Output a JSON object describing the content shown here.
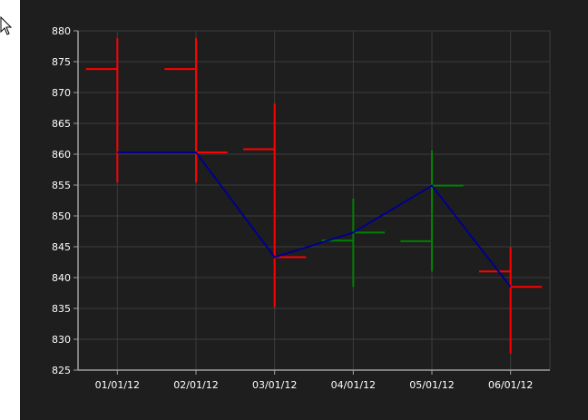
{
  "chart_data": {
    "type": "ohlc",
    "categories": [
      "01/01/12",
      "02/01/12",
      "03/01/12",
      "04/01/12",
      "05/01/12",
      "06/01/12"
    ],
    "ohlc": [
      {
        "open": 873.8,
        "high": 878.8,
        "low": 855.4,
        "close": 860.3
      },
      {
        "open": 873.8,
        "high": 878.8,
        "low": 855.4,
        "close": 860.3
      },
      {
        "open": 860.8,
        "high": 868.2,
        "low": 835.2,
        "close": 843.3
      },
      {
        "open": 846.0,
        "high": 852.8,
        "low": 838.5,
        "close": 847.3
      },
      {
        "open": 845.9,
        "high": 860.6,
        "low": 841.0,
        "close": 854.9
      },
      {
        "open": 841.0,
        "high": 844.9,
        "low": 827.7,
        "close": 838.5
      }
    ],
    "line_series": [
      860.3,
      860.3,
      843.3,
      847.3,
      854.9,
      838.5
    ],
    "yticks": [
      825,
      830,
      835,
      840,
      845,
      850,
      855,
      860,
      865,
      870,
      875,
      880
    ],
    "ylim": [
      825,
      880
    ],
    "grid": true,
    "colors": {
      "up": "#008000",
      "down": "#ff0000",
      "line": "#00008b",
      "background": "#1e1e1e",
      "grid": "#3c3c3c",
      "axis": "#a0a0a0",
      "text": "#ffffff"
    }
  }
}
